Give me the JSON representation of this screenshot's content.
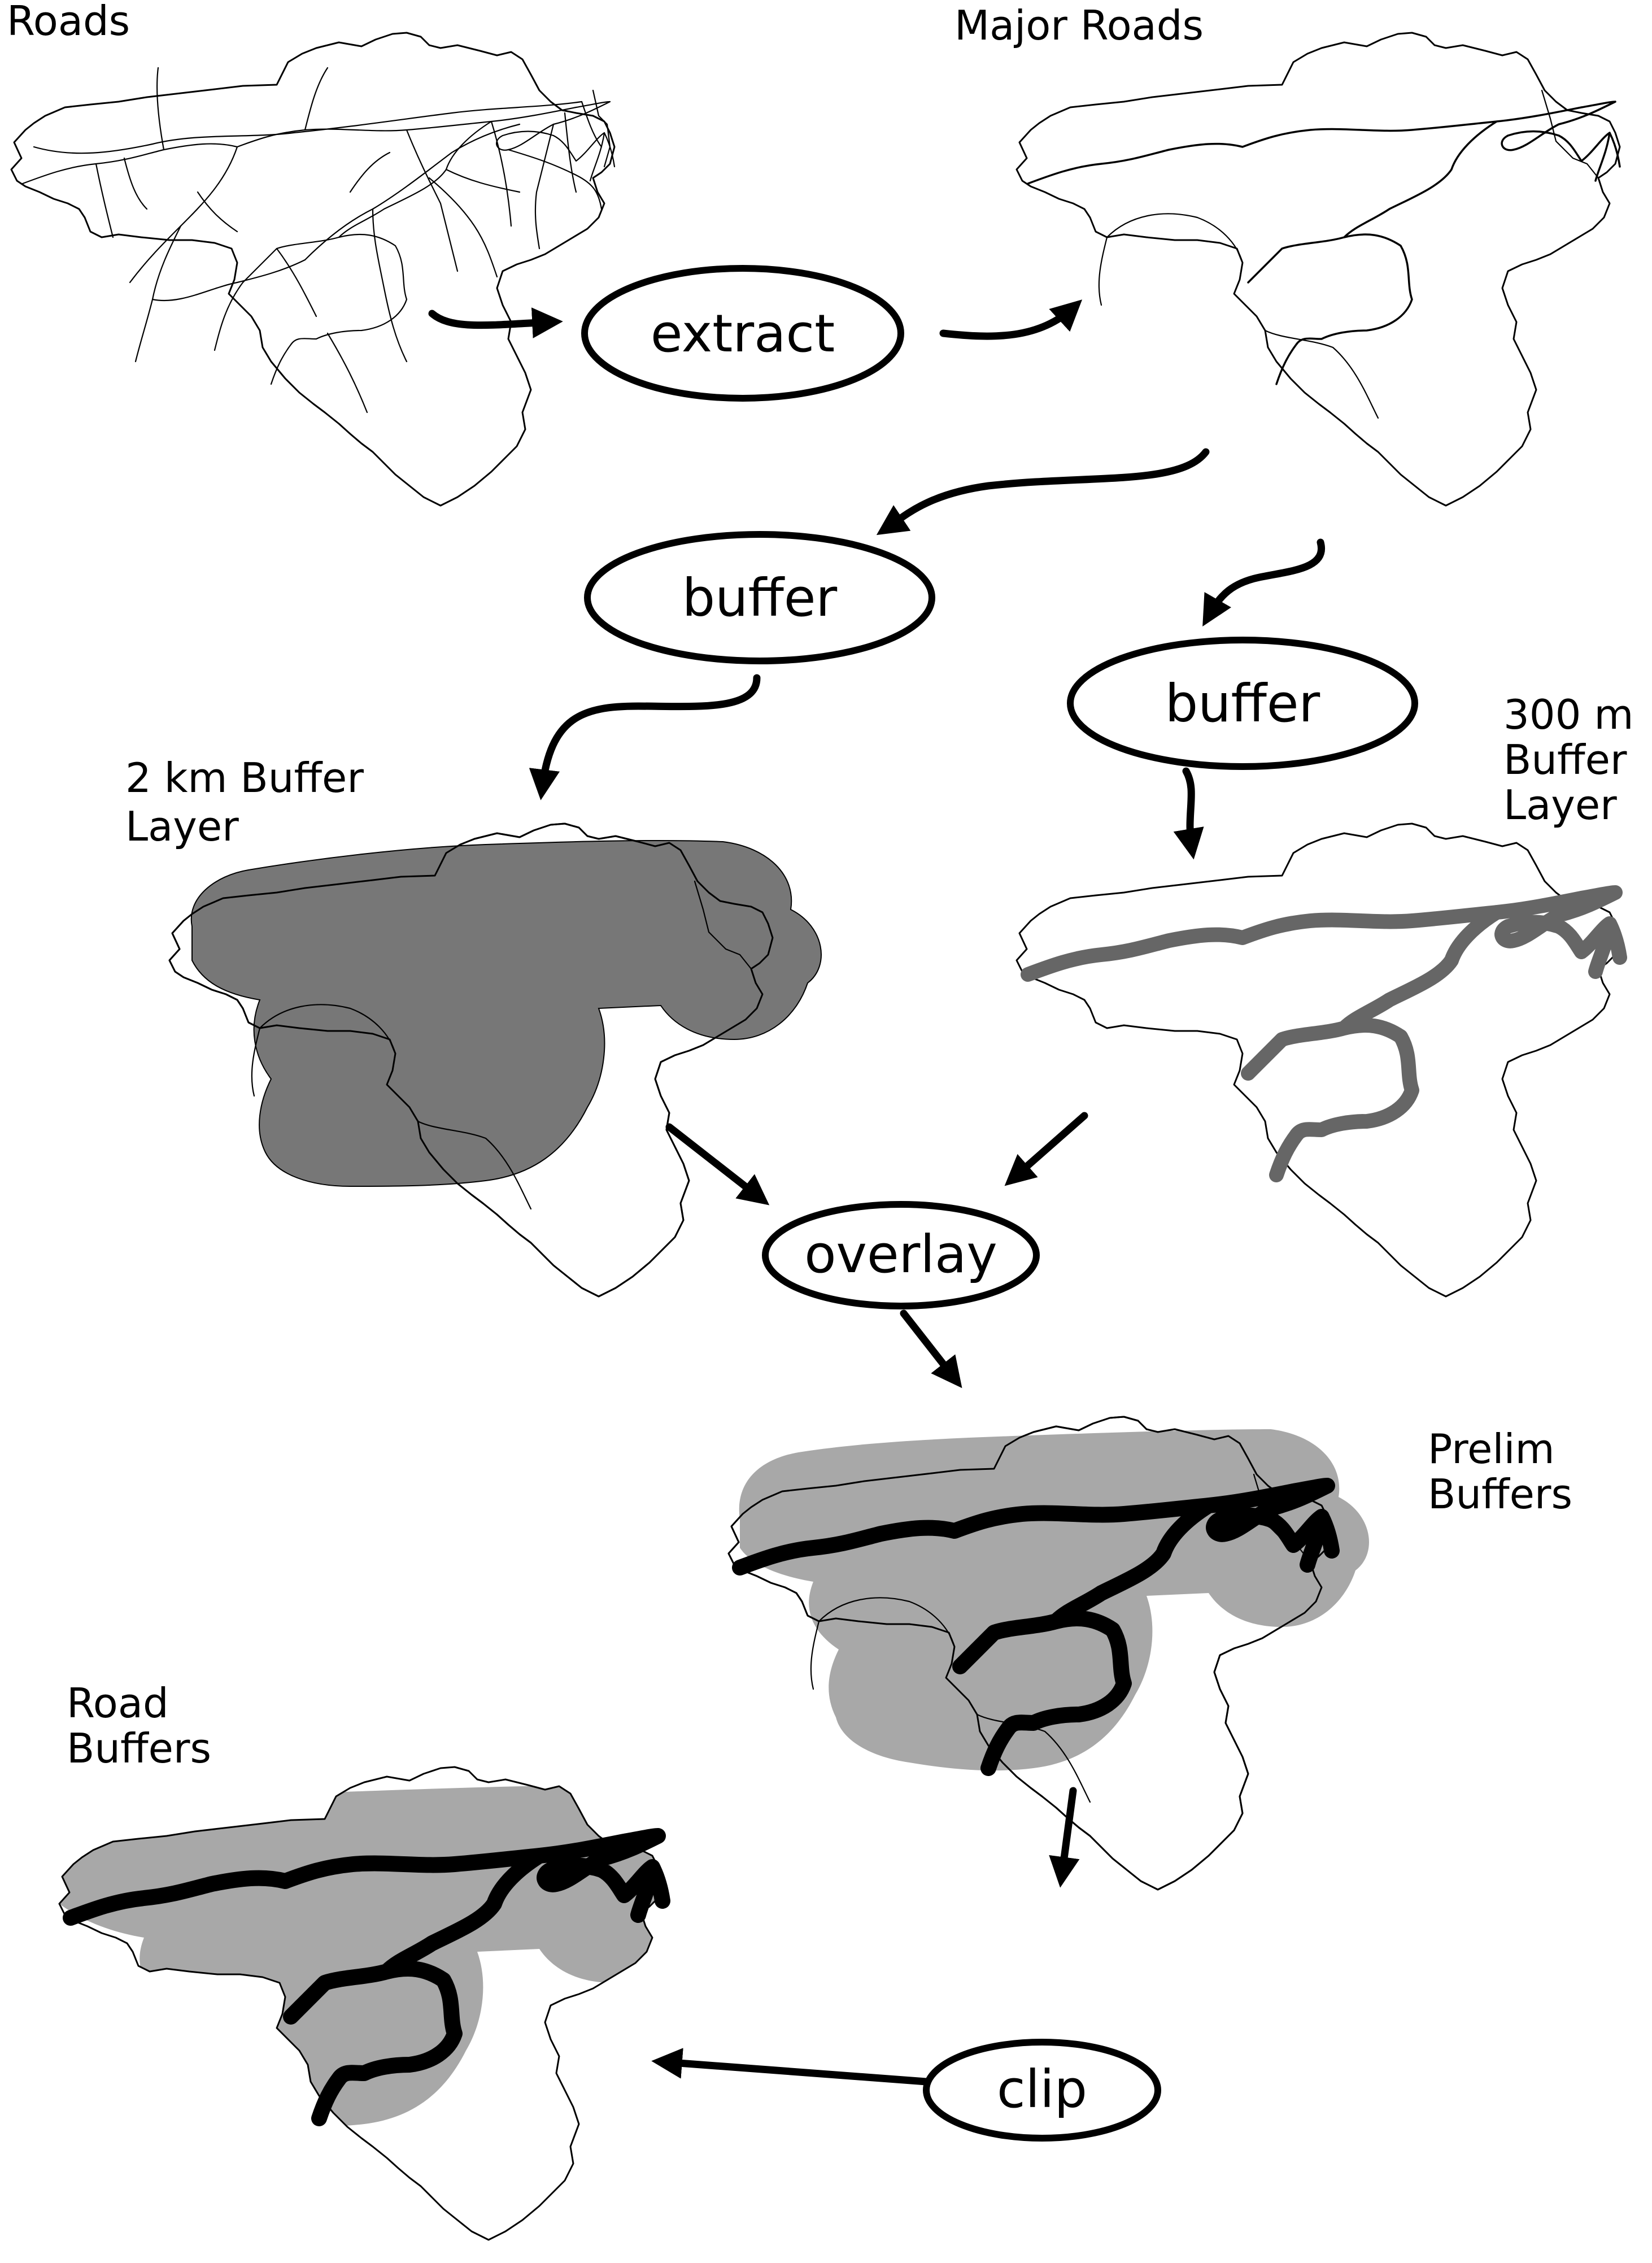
{
  "title_roads": "Roads",
  "title_major_roads": "Major Roads",
  "title_2km_line1": "2 km Buffer",
  "title_2km_line2": "Layer",
  "title_300m_line1": "300 m",
  "title_300m_line2": "Buffer",
  "title_300m_line3": "Layer",
  "title_prelim_line1": "Prelim",
  "title_prelim_line2": "Buffers",
  "title_road_buffers_line1": "Road",
  "title_road_buffers_line2": "Buffers",
  "op_extract": "extract",
  "op_buffer_left": "buffer",
  "op_buffer_right": "buffer",
  "op_overlay": "overlay",
  "op_clip": "clip",
  "colors": {
    "dark_buffer": "#777777",
    "light_buffer": "#a8a8a8",
    "road_300m": "#666666",
    "road_black": "#000000"
  }
}
